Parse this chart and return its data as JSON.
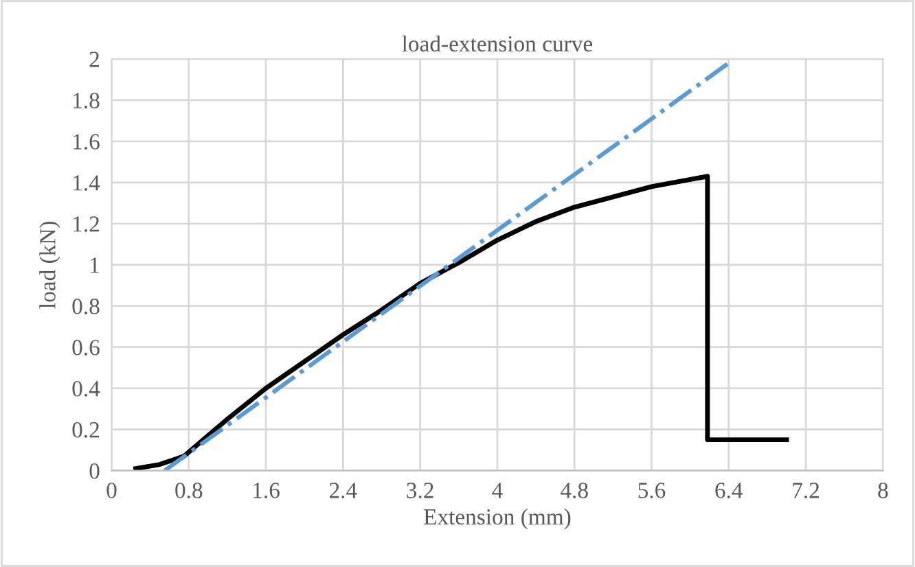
{
  "chart_data": {
    "type": "line",
    "title": "load-extension curve",
    "xlabel": "Extension (mm)",
    "ylabel": "load (kN)",
    "xlim": [
      0,
      8
    ],
    "xticks": [
      0,
      0.8,
      1.6,
      2.4,
      3.2,
      4,
      4.8,
      5.6,
      6.4,
      7.2,
      8
    ],
    "ylim": [
      0,
      2
    ],
    "yticks": [
      0,
      0.2,
      0.4,
      0.6,
      0.8,
      1,
      1.2,
      1.4,
      1.6,
      1.8,
      2
    ],
    "grid": true,
    "marker": "none",
    "series": [
      {
        "color": "#000000",
        "line_style": "solid",
        "x": [
          0.25,
          0.5,
          0.75,
          1.2,
          1.6,
          2.0,
          2.4,
          2.8,
          3.2,
          3.6,
          4.0,
          4.4,
          4.8,
          5.2,
          5.6,
          6.18,
          6.18,
          7.0
        ],
        "values": [
          0.01,
          0.03,
          0.07,
          0.25,
          0.4,
          0.53,
          0.66,
          0.78,
          0.91,
          1.01,
          1.12,
          1.21,
          1.28,
          1.33,
          1.38,
          1.43,
          0.15,
          0.15
        ]
      },
      {
        "color": "#5b9bd5",
        "line_style": "dashdot",
        "x": [
          0.55,
          6.4
        ],
        "values": [
          0,
          1.98
        ]
      }
    ]
  }
}
